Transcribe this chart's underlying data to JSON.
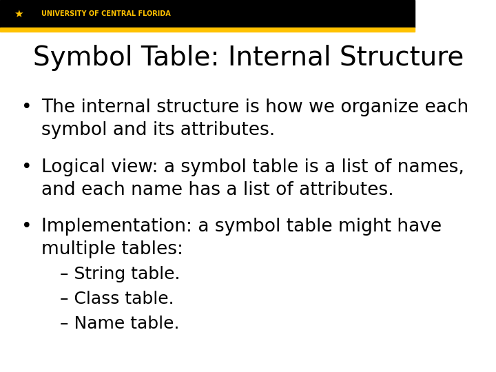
{
  "title": "Symbol Table: Internal Structure",
  "header_bg": "#000000",
  "header_text": "UNIVERSITY OF CENTRAL FLORIDA",
  "header_text_color": "#FFC200",
  "gold_bar_color": "#FFC200",
  "slide_bg": "#FFFFFF",
  "title_color": "#000000",
  "title_fontsize": 28,
  "bullet_fontsize": 19,
  "sub_bullet_fontsize": 18,
  "bullets": [
    "The internal structure is how we organize each\nsymbol and its attributes.",
    "Logical view: a symbol table is a list of names,\nand each name has a list of attributes.",
    "Implementation: a symbol table might have\nmultiple tables:"
  ],
  "sub_bullets": [
    "– String table.",
    "– Class table.",
    "– Name table."
  ]
}
